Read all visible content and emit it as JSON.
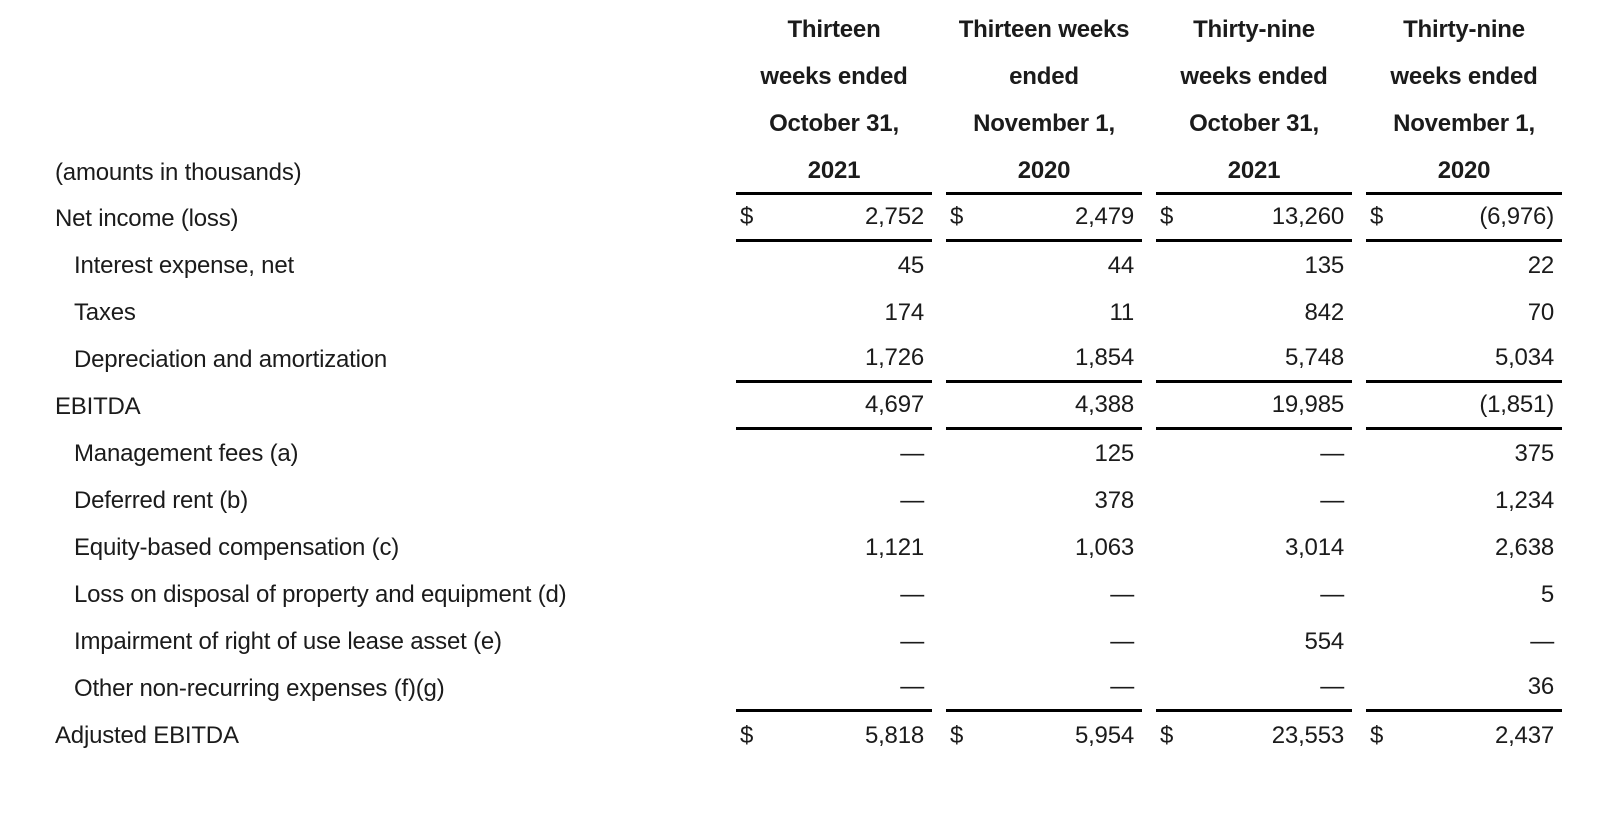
{
  "page": {
    "title": "Adjusted EBITDA reconciliation table"
  },
  "colors": {
    "text": "#1b1b1b",
    "rule": "#000000",
    "background": "#ffffff"
  },
  "table": {
    "units_label": "(amounts in thousands)",
    "columns": [
      {
        "lines": [
          "Thirteen",
          "weeks ended",
          "October 31,",
          "2021"
        ]
      },
      {
        "lines": [
          "Thirteen weeks",
          "ended",
          "November 1,",
          "2020"
        ]
      },
      {
        "lines": [
          "Thirty-nine",
          "weeks ended",
          "October 31,",
          "2021"
        ]
      },
      {
        "lines": [
          "Thirty-nine",
          "weeks ended",
          "November 1,",
          "2020"
        ]
      }
    ],
    "rows": [
      {
        "label": "Net income (loss)",
        "dollar": "$",
        "values": [
          "2,752",
          "2,479",
          "13,260",
          "(6,976)"
        ]
      },
      {
        "label": "Interest expense, net",
        "values": [
          "45",
          "44",
          "135",
          "22"
        ]
      },
      {
        "label": "Taxes",
        "values": [
          "174",
          "11",
          "842",
          "70"
        ]
      },
      {
        "label": "Depreciation and amortization",
        "values": [
          "1,726",
          "1,854",
          "5,748",
          "5,034"
        ]
      },
      {
        "label": "EBITDA",
        "values": [
          "4,697",
          "4,388",
          "19,985",
          "(1,851)"
        ]
      },
      {
        "label": "Management fees (a)",
        "values": [
          "—",
          "125",
          "—",
          "375"
        ]
      },
      {
        "label": "Deferred rent (b)",
        "values": [
          "—",
          "378",
          "—",
          "1,234"
        ]
      },
      {
        "label": "Equity-based compensation (c)",
        "values": [
          "1,121",
          "1,063",
          "3,014",
          "2,638"
        ]
      },
      {
        "label": "Loss on disposal of property and equipment (d)",
        "values": [
          "—",
          "—",
          "—",
          "5"
        ]
      },
      {
        "label": "Impairment of right of use lease asset (e)",
        "values": [
          "—",
          "—",
          "554",
          "—"
        ]
      },
      {
        "label": "Other non-recurring expenses (f)(g)",
        "values": [
          "—",
          "—",
          "—",
          "36"
        ]
      },
      {
        "label": "Adjusted EBITDA",
        "dollar": "$",
        "values": [
          "5,818",
          "5,954",
          "23,553",
          "2,437"
        ]
      }
    ]
  }
}
